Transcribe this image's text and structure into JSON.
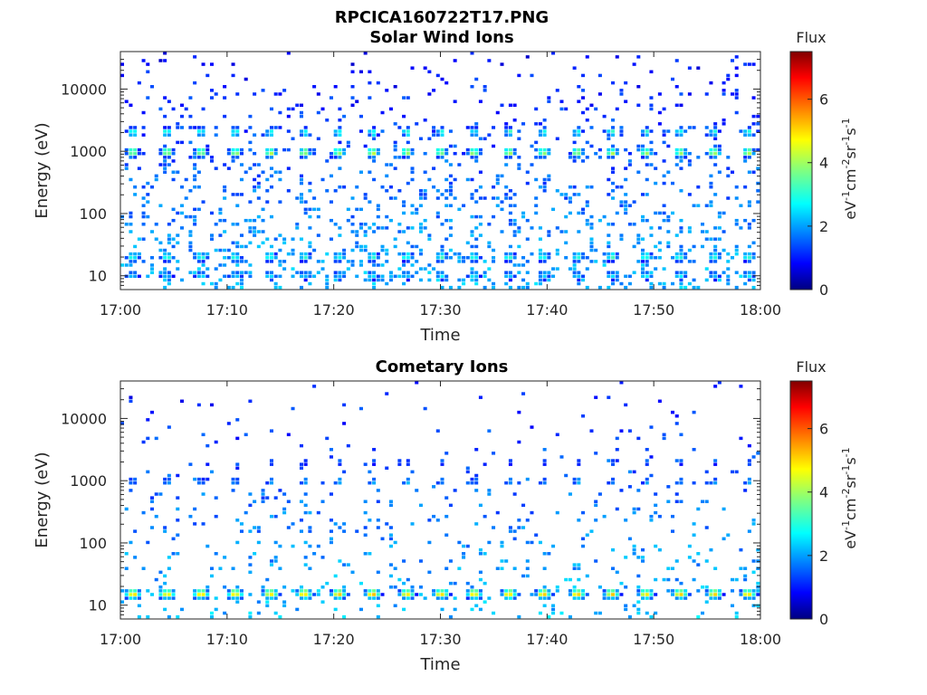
{
  "figure_title": "RPCICA160722T17.PNG",
  "chart_data": [
    {
      "type": "heatmap",
      "title": "Solar Wind Ions",
      "xlabel": "Time",
      "ylabel": "Energy (eV)",
      "x_ticks": [
        "17:00",
        "17:10",
        "17:20",
        "17:30",
        "17:40",
        "17:50",
        "18:00"
      ],
      "x_range": [
        "17:00",
        "18:00"
      ],
      "y_scale": "log",
      "y_ticks": [
        10,
        100,
        1000,
        10000
      ],
      "y_tick_labels": [
        "10",
        "100",
        "1000",
        "10000"
      ],
      "ylim": [
        6,
        40000
      ],
      "colorbar": {
        "label": "Flux",
        "unit": "eV-1cm-2sr-1s-1",
        "ticks": [
          0,
          2,
          4,
          6
        ],
        "range": [
          0,
          7.5
        ],
        "colormap": "jet"
      },
      "sweep_minutes": [
        1.2,
        4.4,
        7.6,
        10.8,
        14.1,
        17.3,
        20.5,
        23.7,
        26.9,
        30.1,
        33.2,
        36.5,
        39.7,
        42.9,
        46.1,
        49.3,
        52.5,
        55.7,
        58.9
      ],
      "peaks": [
        {
          "energy": 950,
          "flux": 4.2,
          "spread_min": 0.45
        },
        {
          "energy": 2000,
          "flux": 3.3,
          "spread_min": 0.35
        },
        {
          "energy": 20,
          "flux": 3.2,
          "spread_min": 0.5
        },
        {
          "energy": 10,
          "flux": 2.6,
          "spread_min": 0.5
        }
      ],
      "background_flux": 1.4
    },
    {
      "type": "heatmap",
      "title": "Cometary Ions",
      "xlabel": "Time",
      "ylabel": "Energy (eV)",
      "x_ticks": [
        "17:00",
        "17:10",
        "17:20",
        "17:30",
        "17:40",
        "17:50",
        "18:00"
      ],
      "x_range": [
        "17:00",
        "18:00"
      ],
      "y_scale": "log",
      "y_ticks": [
        10,
        100,
        1000,
        10000
      ],
      "y_tick_labels": [
        "10",
        "100",
        "1000",
        "10000"
      ],
      "ylim": [
        6,
        40000
      ],
      "colorbar": {
        "label": "Flux",
        "unit": "eV-1cm-2sr-1s-1",
        "ticks": [
          0,
          2,
          4,
          6
        ],
        "range": [
          0,
          7.5
        ],
        "colormap": "jet"
      },
      "sweep_minutes": [
        1.2,
        4.4,
        7.6,
        10.8,
        14.1,
        17.3,
        20.5,
        23.7,
        26.9,
        30.1,
        33.2,
        36.5,
        39.7,
        42.9,
        46.1,
        49.3,
        52.5,
        55.7,
        58.9
      ],
      "peaks": [
        {
          "energy": 15,
          "flux": 5.0,
          "spread_min": 0.55
        },
        {
          "energy": 950,
          "flux": 2.3,
          "spread_min": 0.3
        },
        {
          "energy": 2000,
          "flux": 1.7,
          "spread_min": 0.25
        }
      ],
      "background_flux": 1.5
    }
  ]
}
